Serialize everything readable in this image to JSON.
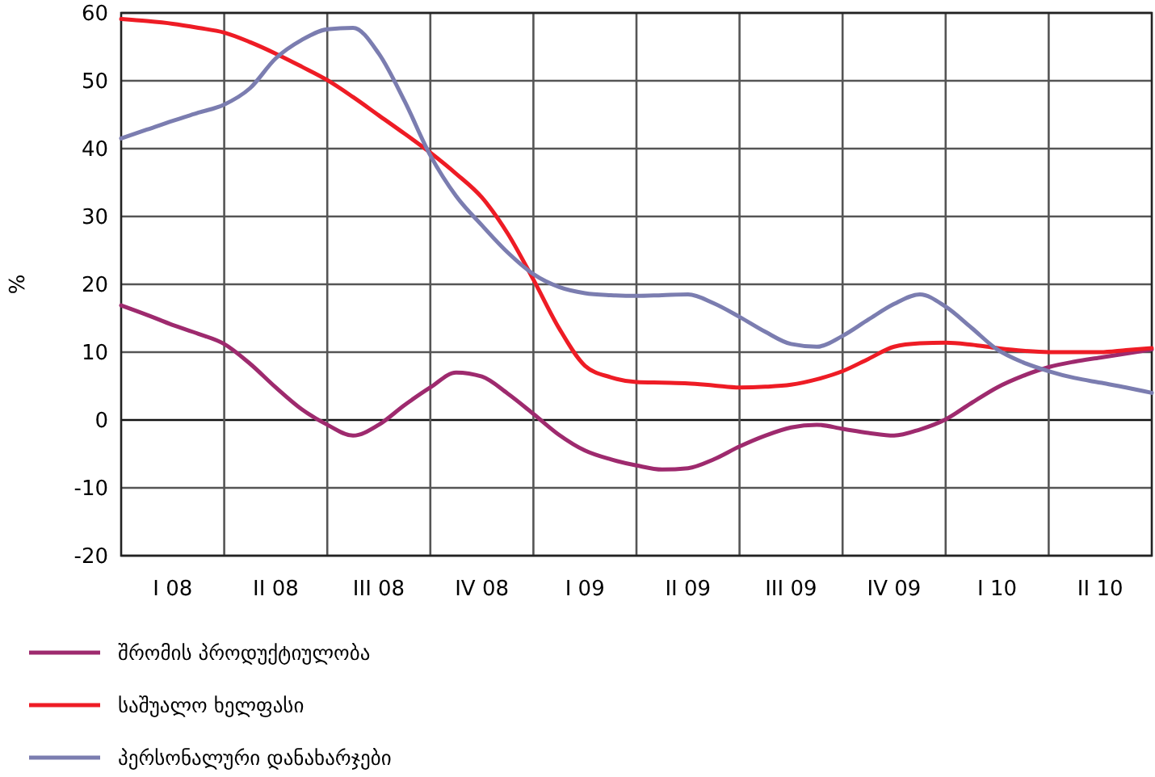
{
  "chart_data": {
    "type": "line",
    "ylabel": "%",
    "categories": [
      null,
      null,
      "I 08",
      null,
      null,
      null,
      "II 08",
      null,
      null,
      null,
      "III 08",
      null,
      null,
      null,
      "IV 08",
      null,
      null,
      null,
      "I 09",
      null,
      null,
      null,
      "II 09",
      null,
      null,
      null,
      "III 09",
      null,
      null,
      null,
      "IV 09",
      null,
      null,
      null,
      "I 10",
      null,
      null,
      null,
      "II 10",
      null,
      null
    ],
    "ylim": [
      -20,
      60
    ],
    "yticks": [
      -20,
      -10,
      0,
      10,
      20,
      30,
      40,
      50,
      60
    ],
    "grid": true,
    "legend": "bottom left",
    "line_style": "solid",
    "marker": "none",
    "series": [
      {
        "name": "შრომის პროდუქტიულობა",
        "color": "#9e2a6e",
        "values": [
          16.9,
          15.5,
          14,
          12.7,
          11.2,
          8.3,
          4.8,
          1.6,
          -0.7,
          -2.3,
          -0.7,
          2.2,
          4.8,
          7,
          6.4,
          3.9,
          0.9,
          -2.2,
          -4.5,
          -5.8,
          -6.7,
          -7.3,
          -7.1,
          -5.8,
          -3.9,
          -2.3,
          -1.1,
          -0.7,
          -1.3,
          -1.9,
          -2.3,
          -1.4,
          0.1,
          2.5,
          4.8,
          6.5,
          7.8,
          8.6,
          9.2,
          9.8,
          10.4
        ]
      },
      {
        "name": "საშუალო ხელფასი",
        "color": "#ee1c25",
        "values": [
          59.1,
          58.8,
          58.4,
          57.8,
          57.1,
          55.7,
          54,
          52.1,
          50.1,
          47.6,
          44.9,
          42.2,
          39.4,
          36.3,
          32.8,
          27.5,
          20.7,
          13.5,
          8,
          6.3,
          5.6,
          5.5,
          5.4,
          5.1,
          4.8,
          4.9,
          5.2,
          6,
          7.2,
          9,
          10.8,
          11.3,
          11.4,
          11.1,
          10.6,
          10.2,
          10,
          10,
          10,
          10.3,
          10.6
        ]
      },
      {
        "name": "პერსონალური დანახარჯები",
        "color": "#7b7db0",
        "values": [
          41.5,
          42.8,
          44.1,
          45.3,
          46.5,
          48.9,
          53.3,
          56,
          57.6,
          57.8,
          54,
          47,
          39,
          33,
          28.7,
          24.7,
          21.5,
          19.6,
          18.7,
          18.4,
          18.3,
          18.4,
          18.5,
          17.2,
          15.2,
          13,
          11.2,
          10.8,
          12.4,
          14.8,
          17.1,
          18.5,
          16.7,
          13.6,
          10.4,
          8.5,
          7.2,
          6.2,
          5.5,
          4.8,
          4
        ]
      }
    ]
  }
}
